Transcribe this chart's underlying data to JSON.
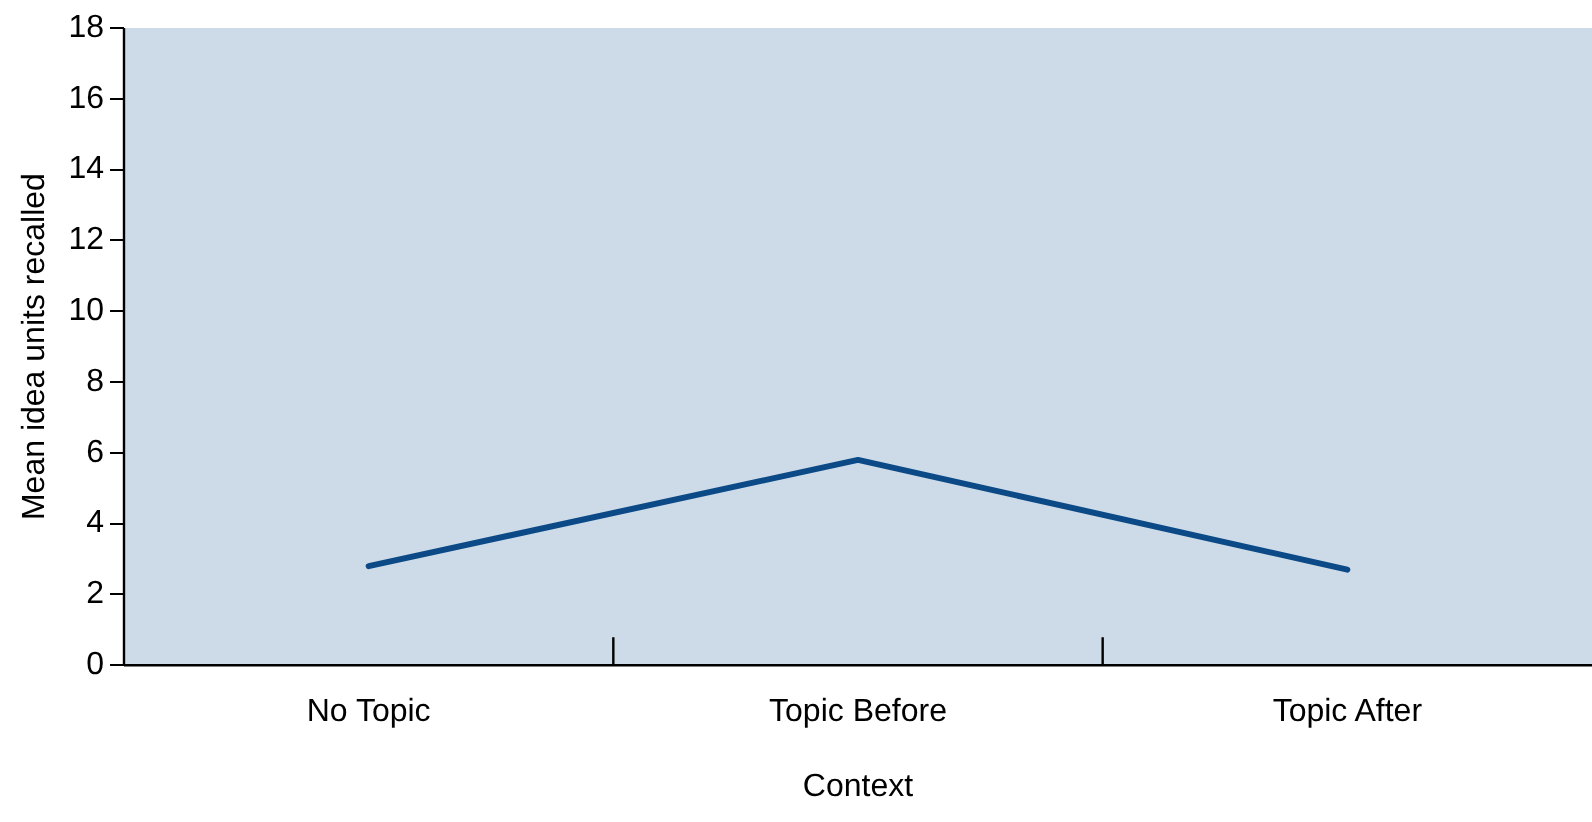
{
  "chart_data": {
    "type": "line",
    "xlabel": "Context",
    "ylabel": "Mean idea units recalled",
    "categories": [
      "No Topic",
      "Topic Before",
      "Topic After"
    ],
    "series": [
      {
        "color": "#0b4a86",
        "values": [
          2.8,
          5.8,
          2.7
        ]
      }
    ],
    "ylim": [
      0,
      18
    ],
    "yticks": [
      0,
      2,
      4,
      6,
      8,
      10,
      12,
      14,
      16,
      18
    ],
    "grid": false,
    "legend": false,
    "marker": "none",
    "line_style": "solid"
  }
}
